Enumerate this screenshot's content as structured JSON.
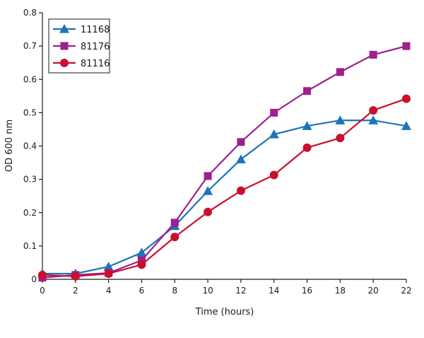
{
  "chart_data": {
    "type": "line",
    "title": "",
    "xlabel": "Time (hours)",
    "ylabel": "OD 600 nm",
    "xlim": [
      0,
      22
    ],
    "ylim": [
      0,
      0.8
    ],
    "x_ticks": [
      "0",
      "2",
      "4",
      "6",
      "8",
      "10",
      "12",
      "14",
      "16",
      "18",
      "20",
      "22"
    ],
    "y_ticks": [
      "0",
      "0.1",
      "0.2",
      "0.3",
      "0.4",
      "0.5",
      "0.6",
      "0.7",
      "0.8"
    ],
    "grid": false,
    "legend_position": "top-left",
    "x": [
      0,
      2,
      4,
      6,
      8,
      10,
      12,
      14,
      16,
      18,
      20,
      22
    ],
    "series": [
      {
        "name": "11168",
        "marker": "triangle",
        "color": "#1b75b8",
        "values": [
          0.017,
          0.017,
          0.038,
          0.08,
          0.16,
          0.265,
          0.36,
          0.435,
          0.46,
          0.477,
          0.477,
          0.46
        ]
      },
      {
        "name": "81176",
        "marker": "square",
        "color": "#9e1f8e",
        "values": [
          0.005,
          0.013,
          0.019,
          0.057,
          0.17,
          0.31,
          0.412,
          0.5,
          0.565,
          0.622,
          0.674,
          0.7
        ]
      },
      {
        "name": "81116",
        "marker": "circle",
        "color": "#c8102e",
        "values": [
          0.013,
          0.009,
          0.017,
          0.044,
          0.127,
          0.202,
          0.266,
          0.313,
          0.395,
          0.424,
          0.507,
          0.542
        ]
      }
    ]
  }
}
